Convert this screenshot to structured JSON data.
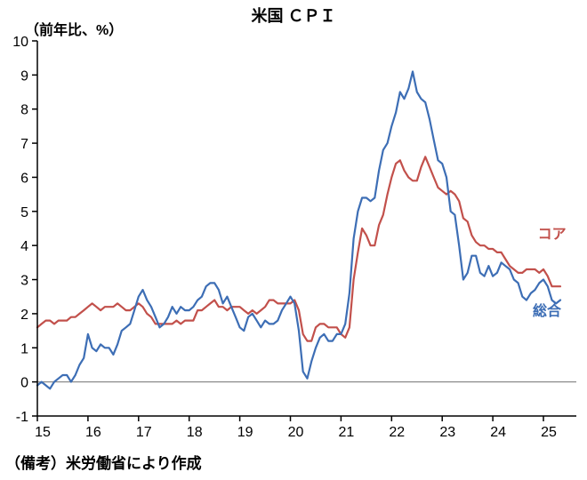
{
  "chart_data": {
    "type": "line",
    "title": "米国 ＣＰＩ",
    "ylabel": "（前年比、%）",
    "note": "（備考）米労働省により作成",
    "x_start_year": 2015,
    "x_frequency": "monthly",
    "xlim": [
      2015,
      2025.65
    ],
    "ylim": [
      -1,
      10
    ],
    "y_ticks": [
      -1,
      0,
      1,
      2,
      3,
      4,
      5,
      6,
      7,
      8,
      9,
      10
    ],
    "x_ticks": [
      {
        "year": 2015,
        "label": "15"
      },
      {
        "year": 2016,
        "label": "16"
      },
      {
        "year": 2017,
        "label": "17"
      },
      {
        "year": 2018,
        "label": "18"
      },
      {
        "year": 2019,
        "label": "19"
      },
      {
        "year": 2020,
        "label": "20"
      },
      {
        "year": 2021,
        "label": "21"
      },
      {
        "year": 2022,
        "label": "22"
      },
      {
        "year": 2023,
        "label": "23"
      },
      {
        "year": 2024,
        "label": "24"
      },
      {
        "year": 2025,
        "label": "25"
      }
    ],
    "grid": false,
    "legend_position": "inline-right",
    "zero_line_color": "#8c8c8c",
    "axis_color": "#000000",
    "series": [
      {
        "name": "コア",
        "role": "core-cpi",
        "color": "#c2504b",
        "values": [
          1.6,
          1.7,
          1.8,
          1.8,
          1.7,
          1.8,
          1.8,
          1.8,
          1.9,
          1.9,
          2.0,
          2.1,
          2.2,
          2.3,
          2.2,
          2.1,
          2.2,
          2.2,
          2.2,
          2.3,
          2.2,
          2.1,
          2.1,
          2.2,
          2.3,
          2.2,
          2.0,
          1.9,
          1.7,
          1.7,
          1.7,
          1.7,
          1.7,
          1.8,
          1.7,
          1.8,
          1.8,
          1.8,
          2.1,
          2.1,
          2.2,
          2.3,
          2.4,
          2.2,
          2.2,
          2.1,
          2.2,
          2.2,
          2.2,
          2.1,
          2.0,
          2.1,
          2.0,
          2.1,
          2.2,
          2.4,
          2.4,
          2.3,
          2.3,
          2.3,
          2.3,
          2.4,
          2.1,
          1.4,
          1.2,
          1.2,
          1.6,
          1.7,
          1.7,
          1.6,
          1.6,
          1.6,
          1.4,
          1.3,
          1.6,
          3.0,
          3.8,
          4.5,
          4.3,
          4.0,
          4.0,
          4.6,
          4.9,
          5.5,
          6.0,
          6.4,
          6.5,
          6.2,
          6.0,
          5.9,
          5.9,
          6.3,
          6.6,
          6.3,
          6.0,
          5.7,
          5.6,
          5.5,
          5.6,
          5.5,
          5.3,
          4.8,
          4.7,
          4.3,
          4.1,
          4.0,
          4.0,
          3.9,
          3.9,
          3.8,
          3.8,
          3.6,
          3.4,
          3.3,
          3.2,
          3.2,
          3.3,
          3.3,
          3.3,
          3.2,
          3.3,
          3.1,
          2.8,
          2.8,
          2.8
        ]
      },
      {
        "name": "総合",
        "role": "headline-cpi",
        "color": "#3d6eb5",
        "values": [
          -0.1,
          0.0,
          -0.1,
          -0.2,
          0.0,
          0.1,
          0.2,
          0.2,
          0.0,
          0.2,
          0.5,
          0.7,
          1.4,
          1.0,
          0.9,
          1.1,
          1.0,
          1.0,
          0.8,
          1.1,
          1.5,
          1.6,
          1.7,
          2.1,
          2.5,
          2.7,
          2.4,
          2.2,
          1.9,
          1.6,
          1.7,
          1.9,
          2.2,
          2.0,
          2.2,
          2.1,
          2.1,
          2.2,
          2.4,
          2.5,
          2.8,
          2.9,
          2.9,
          2.7,
          2.3,
          2.5,
          2.2,
          1.9,
          1.6,
          1.5,
          1.9,
          2.0,
          1.8,
          1.6,
          1.8,
          1.7,
          1.7,
          1.8,
          2.1,
          2.3,
          2.5,
          2.3,
          1.5,
          0.3,
          0.1,
          0.6,
          1.0,
          1.3,
          1.4,
          1.2,
          1.2,
          1.4,
          1.4,
          1.7,
          2.6,
          4.2,
          5.0,
          5.4,
          5.4,
          5.3,
          5.4,
          6.2,
          6.8,
          7.0,
          7.5,
          7.9,
          8.5,
          8.3,
          8.6,
          9.1,
          8.5,
          8.3,
          8.2,
          7.7,
          7.1,
          6.5,
          6.4,
          6.0,
          5.0,
          4.9,
          4.0,
          3.0,
          3.2,
          3.7,
          3.7,
          3.2,
          3.1,
          3.4,
          3.1,
          3.2,
          3.5,
          3.4,
          3.3,
          3.0,
          2.9,
          2.5,
          2.4,
          2.6,
          2.7,
          2.9,
          3.0,
          2.8,
          2.4,
          2.3,
          2.4
        ]
      }
    ],
    "series_labels": [
      {
        "text": "コア",
        "color": "#c2504b",
        "x": 2025.17,
        "y": 4.2
      },
      {
        "text": "総合",
        "color": "#3d6eb5",
        "x": 2025.07,
        "y": 1.95
      }
    ]
  }
}
